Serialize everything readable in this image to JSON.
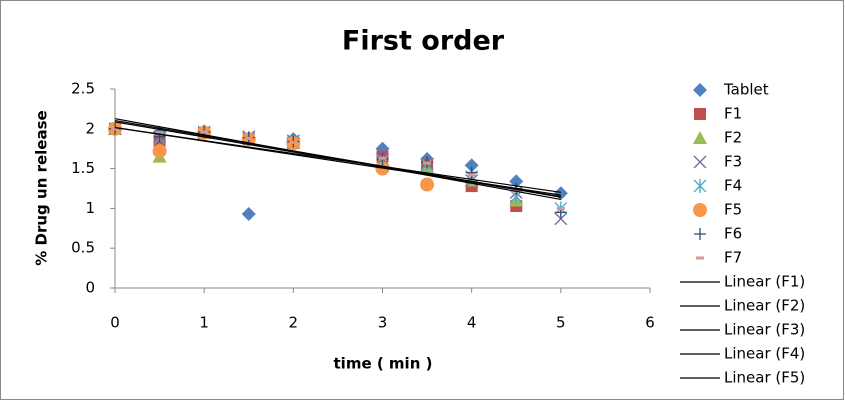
{
  "chart_data": {
    "type": "scatter",
    "title": "First order",
    "x_label": "time ( min )",
    "y_label": "% Drug un release",
    "x": [
      0,
      0.5,
      1,
      1.5,
      2,
      3,
      3.5,
      4,
      4.5,
      5
    ],
    "xlim": [
      0,
      6
    ],
    "xticks": [
      0,
      1,
      2,
      3,
      4,
      5,
      6
    ],
    "ylim": [
      0,
      2.5
    ],
    "yticks": [
      0,
      0.5,
      1,
      1.5,
      2,
      2.5
    ],
    "grid": false,
    "legend": "right",
    "series": [
      {
        "name": "Tablet",
        "color": "#4f81bd",
        "marker": "diamond",
        "values": [
          2.0,
          1.95,
          1.97,
          0.93,
          1.87,
          1.75,
          1.62,
          1.54,
          1.34,
          1.19
        ]
      },
      {
        "name": "F1",
        "color": "#c0504d",
        "marker": "square",
        "values": [
          2.0,
          1.85,
          1.95,
          1.87,
          1.82,
          1.65,
          1.55,
          1.28,
          1.03,
          null
        ],
        "trendline": "Linear (F1)"
      },
      {
        "name": "F2",
        "color": "#9bbb59",
        "marker": "triangle",
        "values": [
          2.0,
          1.65,
          1.95,
          1.88,
          1.83,
          1.6,
          1.52,
          1.35,
          1.1,
          null
        ],
        "trendline": "Linear (F2)"
      },
      {
        "name": "F3",
        "color": "#8064a2",
        "marker": "x",
        "values": [
          2.0,
          1.9,
          1.95,
          1.9,
          1.85,
          1.62,
          1.56,
          1.35,
          1.2,
          0.87
        ],
        "trendline": "Linear (F3)"
      },
      {
        "name": "F4",
        "color": "#4bacc6",
        "marker": "asterisk",
        "values": [
          2.0,
          1.88,
          1.96,
          1.88,
          1.84,
          1.6,
          1.55,
          1.4,
          1.15,
          1.0
        ],
        "trendline": "Linear (F4)"
      },
      {
        "name": "F5",
        "color": "#f79646",
        "marker": "circle",
        "values": [
          2.0,
          1.72,
          1.95,
          1.87,
          1.82,
          1.5,
          1.3,
          null,
          null,
          null
        ],
        "trendline": "Linear (F5)"
      },
      {
        "name": "F6",
        "color": "#2c4d75",
        "marker": "plus",
        "values": [
          2.0,
          1.9,
          1.96,
          1.89,
          1.84,
          1.62,
          1.58,
          1.45,
          1.25,
          0.95
        ]
      },
      {
        "name": "F7",
        "color": "#d99694",
        "marker": "dash",
        "values": [
          2.0,
          1.95,
          1.96,
          1.88,
          1.83,
          1.63,
          1.57,
          1.42,
          1.22,
          1.0
        ]
      }
    ]
  }
}
